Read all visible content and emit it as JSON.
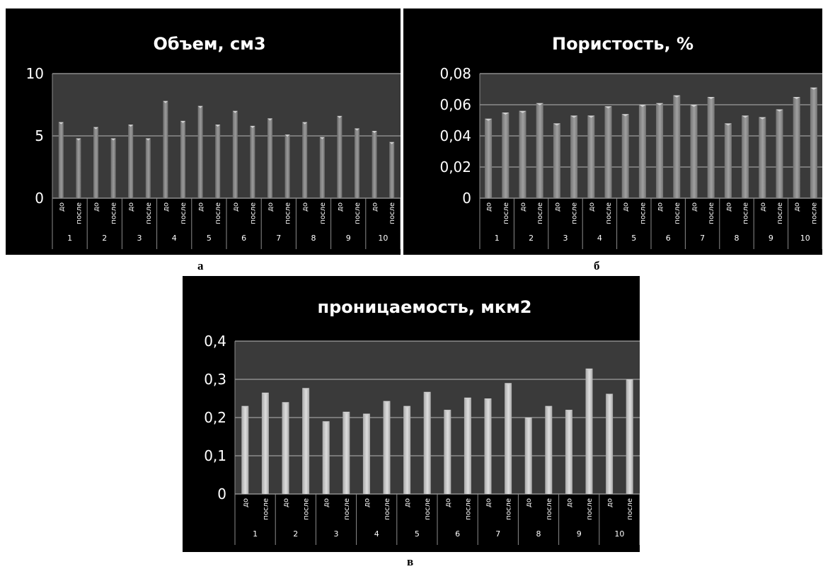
{
  "captions": {
    "a": "а",
    "b": "б",
    "c": "в"
  },
  "colors": {
    "background": "#000000",
    "plot_area": "#3c3c3c",
    "bar_dark": "#6e6e6e",
    "bar_light": "#a8a8a8",
    "text": "#ffffff"
  },
  "chart_data": [
    {
      "id": "a",
      "type": "bar",
      "title": "Объем, см3",
      "groups": [
        "1",
        "2",
        "3",
        "4",
        "5",
        "6",
        "7",
        "8",
        "9",
        "10"
      ],
      "sub_labels": [
        "до",
        "после"
      ],
      "values": [
        6.1,
        4.8,
        5.7,
        4.8,
        5.9,
        4.8,
        7.8,
        6.2,
        7.4,
        5.9,
        7.0,
        5.8,
        6.4,
        5.1,
        6.1,
        4.9,
        6.6,
        5.6,
        5.4,
        4.5
      ],
      "ylim": [
        0,
        10
      ],
      "yticks": [
        0,
        5,
        10
      ],
      "ytick_labels": [
        "0",
        "5",
        "10"
      ],
      "grid": true
    },
    {
      "id": "b",
      "type": "bar",
      "title": "Пористость, %",
      "groups": [
        "1",
        "2",
        "3",
        "4",
        "5",
        "6",
        "7",
        "8",
        "9",
        "10"
      ],
      "sub_labels": [
        "до",
        "после"
      ],
      "values": [
        0.051,
        0.055,
        0.056,
        0.061,
        0.048,
        0.053,
        0.053,
        0.059,
        0.054,
        0.06,
        0.061,
        0.066,
        0.06,
        0.065,
        0.048,
        0.053,
        0.052,
        0.057,
        0.065,
        0.071
      ],
      "ylim": [
        0,
        0.08
      ],
      "yticks": [
        0,
        0.02,
        0.04,
        0.06,
        0.08
      ],
      "ytick_labels": [
        "0",
        "0,02",
        "0,04",
        "0,06",
        "0,08"
      ],
      "grid": true
    },
    {
      "id": "c",
      "type": "bar",
      "title": "проницаемость, мкм2",
      "groups": [
        "1",
        "2",
        "3",
        "4",
        "5",
        "6",
        "7",
        "8",
        "9",
        "10"
      ],
      "sub_labels": [
        "до",
        "после"
      ],
      "values": [
        0.23,
        0.265,
        0.24,
        0.277,
        0.19,
        0.215,
        0.21,
        0.243,
        0.23,
        0.267,
        0.22,
        0.252,
        0.25,
        0.29,
        0.2,
        0.23,
        0.22,
        0.328,
        0.262,
        0.3
      ],
      "ylim": [
        0,
        0.4
      ],
      "yticks": [
        0,
        0.1,
        0.2,
        0.3,
        0.4
      ],
      "ytick_labels": [
        "0",
        "0,1",
        "0,2",
        "0,3",
        "0,4"
      ],
      "grid": true
    }
  ]
}
